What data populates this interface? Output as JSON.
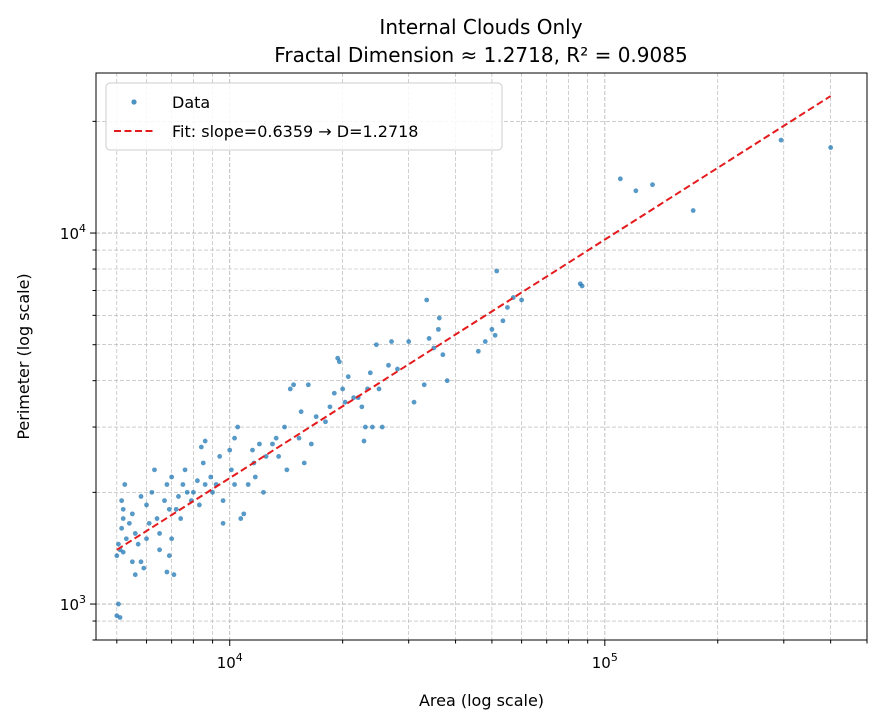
{
  "chart_data": {
    "type": "scatter",
    "title": [
      "Internal Clouds Only",
      "Fractal Dimension ≈ 1.2718, R² = 0.9085"
    ],
    "xlabel": "Area (log scale)",
    "ylabel": "Perimeter (log scale)",
    "xscale": "log",
    "yscale": "log",
    "xlim": [
      4400,
      500000
    ],
    "ylim": [
      800,
      27000
    ],
    "x_ticks": [
      {
        "base": "10",
        "exp": "4",
        "value": 10000
      },
      {
        "base": "10",
        "exp": "5",
        "value": 100000
      }
    ],
    "y_ticks": [
      {
        "base": "10",
        "exp": "3",
        "value": 1000
      },
      {
        "base": "10",
        "exp": "4",
        "value": 10000
      }
    ],
    "grid": true,
    "legend": {
      "location": "upper-left",
      "entries": [
        {
          "label": "Data",
          "style": "marker",
          "color": "#1f77b4"
        },
        {
          "label": "Fit: slope=0.6359 → D=1.2718",
          "style": "dashed-line",
          "color": "#e41a1c"
        }
      ]
    },
    "series": [
      {
        "name": "Data",
        "kind": "scatter",
        "color": "#1f77b4",
        "points": [
          [
            5000,
            930
          ],
          [
            5100,
            920
          ],
          [
            5050,
            1000
          ],
          [
            5000,
            1350
          ],
          [
            5100,
            1400
          ],
          [
            5200,
            1380
          ],
          [
            5050,
            1450
          ],
          [
            5300,
            1500
          ],
          [
            5150,
            1600
          ],
          [
            5200,
            1700
          ],
          [
            5400,
            1650
          ],
          [
            5500,
            1750
          ],
          [
            5200,
            1800
          ],
          [
            5150,
            1900
          ],
          [
            5250,
            2100
          ],
          [
            5600,
            1550
          ],
          [
            5700,
            1450
          ],
          [
            5500,
            1300
          ],
          [
            5800,
            1300
          ],
          [
            5600,
            1200
          ],
          [
            5900,
            1250
          ],
          [
            6000,
            1500
          ],
          [
            6100,
            1650
          ],
          [
            6000,
            1850
          ],
          [
            5800,
            1950
          ],
          [
            6200,
            2000
          ],
          [
            6300,
            2300
          ],
          [
            6400,
            1700
          ],
          [
            6500,
            1400
          ],
          [
            6500,
            1550
          ],
          [
            6700,
            1900
          ],
          [
            6800,
            2100
          ],
          [
            7000,
            2200
          ],
          [
            6900,
            1800
          ],
          [
            7000,
            1500
          ],
          [
            6900,
            1350
          ],
          [
            6800,
            1220
          ],
          [
            7100,
            1200
          ],
          [
            7200,
            1800
          ],
          [
            7300,
            1950
          ],
          [
            7500,
            2100
          ],
          [
            7600,
            2300
          ],
          [
            7400,
            1700
          ],
          [
            7700,
            2000
          ],
          [
            7900,
            1900
          ],
          [
            8000,
            2000
          ],
          [
            8200,
            2150
          ],
          [
            8300,
            1850
          ],
          [
            8500,
            2400
          ],
          [
            8400,
            2650
          ],
          [
            8600,
            2750
          ],
          [
            8600,
            2100
          ],
          [
            8900,
            2200
          ],
          [
            9000,
            2000
          ],
          [
            9200,
            2100
          ],
          [
            9400,
            2500
          ],
          [
            9600,
            1900
          ],
          [
            9600,
            1650
          ],
          [
            10000,
            2600
          ],
          [
            10300,
            2800
          ],
          [
            10500,
            3000
          ],
          [
            10100,
            2300
          ],
          [
            10300,
            2100
          ],
          [
            10700,
            1700
          ],
          [
            10900,
            1750
          ],
          [
            11200,
            2100
          ],
          [
            11500,
            2600
          ],
          [
            11600,
            2400
          ],
          [
            12000,
            2700
          ],
          [
            11700,
            2200
          ],
          [
            12300,
            2000
          ],
          [
            12500,
            2500
          ],
          [
            13000,
            2700
          ],
          [
            13500,
            2500
          ],
          [
            13300,
            2800
          ],
          [
            14000,
            3000
          ],
          [
            14500,
            3800
          ],
          [
            14800,
            3900
          ],
          [
            14200,
            2300
          ],
          [
            15300,
            2800
          ],
          [
            15500,
            3300
          ],
          [
            15800,
            2400
          ],
          [
            16200,
            3900
          ],
          [
            16500,
            2700
          ],
          [
            17000,
            3200
          ],
          [
            18000,
            3100
          ],
          [
            18500,
            3400
          ],
          [
            19000,
            3700
          ],
          [
            19400,
            4600
          ],
          [
            20000,
            3800
          ],
          [
            20300,
            3500
          ],
          [
            19600,
            4500
          ],
          [
            20700,
            4100
          ],
          [
            21400,
            3600
          ],
          [
            22000,
            3600
          ],
          [
            22500,
            3400
          ],
          [
            22800,
            2750
          ],
          [
            23000,
            3000
          ],
          [
            23300,
            3800
          ],
          [
            23700,
            4200
          ],
          [
            24000,
            3000
          ],
          [
            24600,
            5000
          ],
          [
            25000,
            3800
          ],
          [
            25500,
            3000
          ],
          [
            26500,
            4400
          ],
          [
            28000,
            4300
          ],
          [
            27000,
            5100
          ],
          [
            30000,
            5100
          ],
          [
            31000,
            3500
          ],
          [
            33000,
            3900
          ],
          [
            33500,
            6600
          ],
          [
            34000,
            5200
          ],
          [
            35000,
            4900
          ],
          [
            36000,
            5500
          ],
          [
            36200,
            5900
          ],
          [
            37000,
            4700
          ],
          [
            38000,
            4000
          ],
          [
            46000,
            4800
          ],
          [
            48000,
            5100
          ],
          [
            50000,
            5500
          ],
          [
            51000,
            5300
          ],
          [
            51500,
            7900
          ],
          [
            53500,
            5800
          ],
          [
            55000,
            6300
          ],
          [
            57000,
            6700
          ],
          [
            60000,
            6600
          ],
          [
            86000,
            7300
          ],
          [
            87000,
            7200
          ],
          [
            110000,
            14000
          ],
          [
            121000,
            13000
          ],
          [
            134000,
            13500
          ],
          [
            172000,
            11500
          ],
          [
            295000,
            17800
          ],
          [
            400000,
            17000
          ]
        ]
      },
      {
        "name": "Fit: slope=0.6359 → D=1.2718",
        "kind": "line",
        "style": "dashed",
        "color": "#e41a1c",
        "x": [
          5000,
          400000
        ],
        "y": [
          1400,
          23400
        ]
      }
    ]
  }
}
